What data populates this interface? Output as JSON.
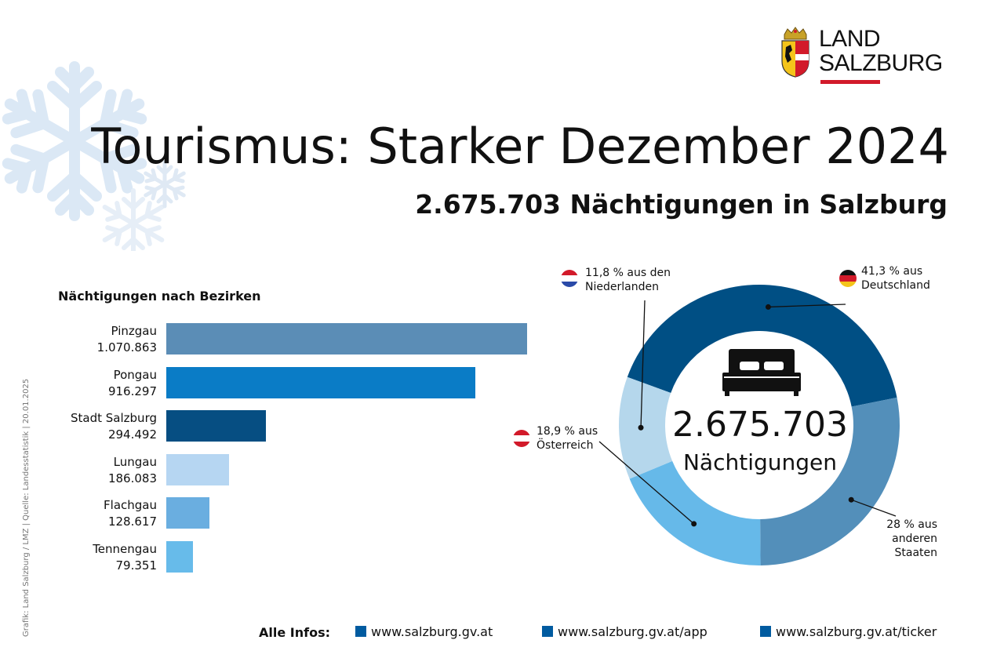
{
  "logo": {
    "line1": "LAND",
    "line2": "SALZBURG"
  },
  "title": "Tourismus: Starker Dezember 2024",
  "subtitle": "2.675.703 Nächtigungen in Salzburg",
  "credit": "Grafik: Land Salzburg / LMZ  |  Quelle: Landesstatistik  |  20.01.2025",
  "chart_data": [
    {
      "type": "bar",
      "orientation": "horizontal",
      "title": "Nächtigungen nach Bezirken",
      "categories": [
        "Pinzgau",
        "Pongau",
        "Stadt Salzburg",
        "Lungau",
        "Flachgau",
        "Tennengau"
      ],
      "values": [
        1070863,
        916297,
        294492,
        186083,
        128617,
        79351
      ],
      "value_labels": [
        "1.070.863",
        "916.297",
        "294.492",
        "186.083",
        "128.617",
        "79.351"
      ],
      "colors": [
        "#5b8db6",
        "#0a7cc6",
        "#064e82",
        "#b6d6f2",
        "#6aaee0",
        "#67bbea"
      ],
      "grid": false
    },
    {
      "type": "pie",
      "donut": true,
      "center_value": "2.675.703",
      "center_label": "Nächtigungen",
      "slices": [
        {
          "label": "Deutschland",
          "value": 41.3,
          "text": [
            "41,3 % aus",
            "Deutschland"
          ],
          "color": "#004f84",
          "flag": "de"
        },
        {
          "label": "anderen Staaten",
          "value": 28,
          "text": [
            "28 % aus",
            "anderen",
            "Staaten"
          ],
          "color": "#538fba",
          "flag": ""
        },
        {
          "label": "Österreich",
          "value": 18.9,
          "text": [
            "18,9 % aus",
            "Österreich"
          ],
          "color": "#66b9e9",
          "flag": "at"
        },
        {
          "label": "Niederlanden",
          "value": 11.8,
          "text": [
            "11,8 % aus den",
            "Niederlanden"
          ],
          "color": "#b5d7ec",
          "flag": "nl"
        }
      ]
    }
  ],
  "footer": {
    "label": "Alle Infos:",
    "links": [
      "www.salzburg.gv.at",
      "www.salzburg.gv.at/app",
      "www.salzburg.gv.at/ticker"
    ],
    "accent": "#005ba0"
  }
}
